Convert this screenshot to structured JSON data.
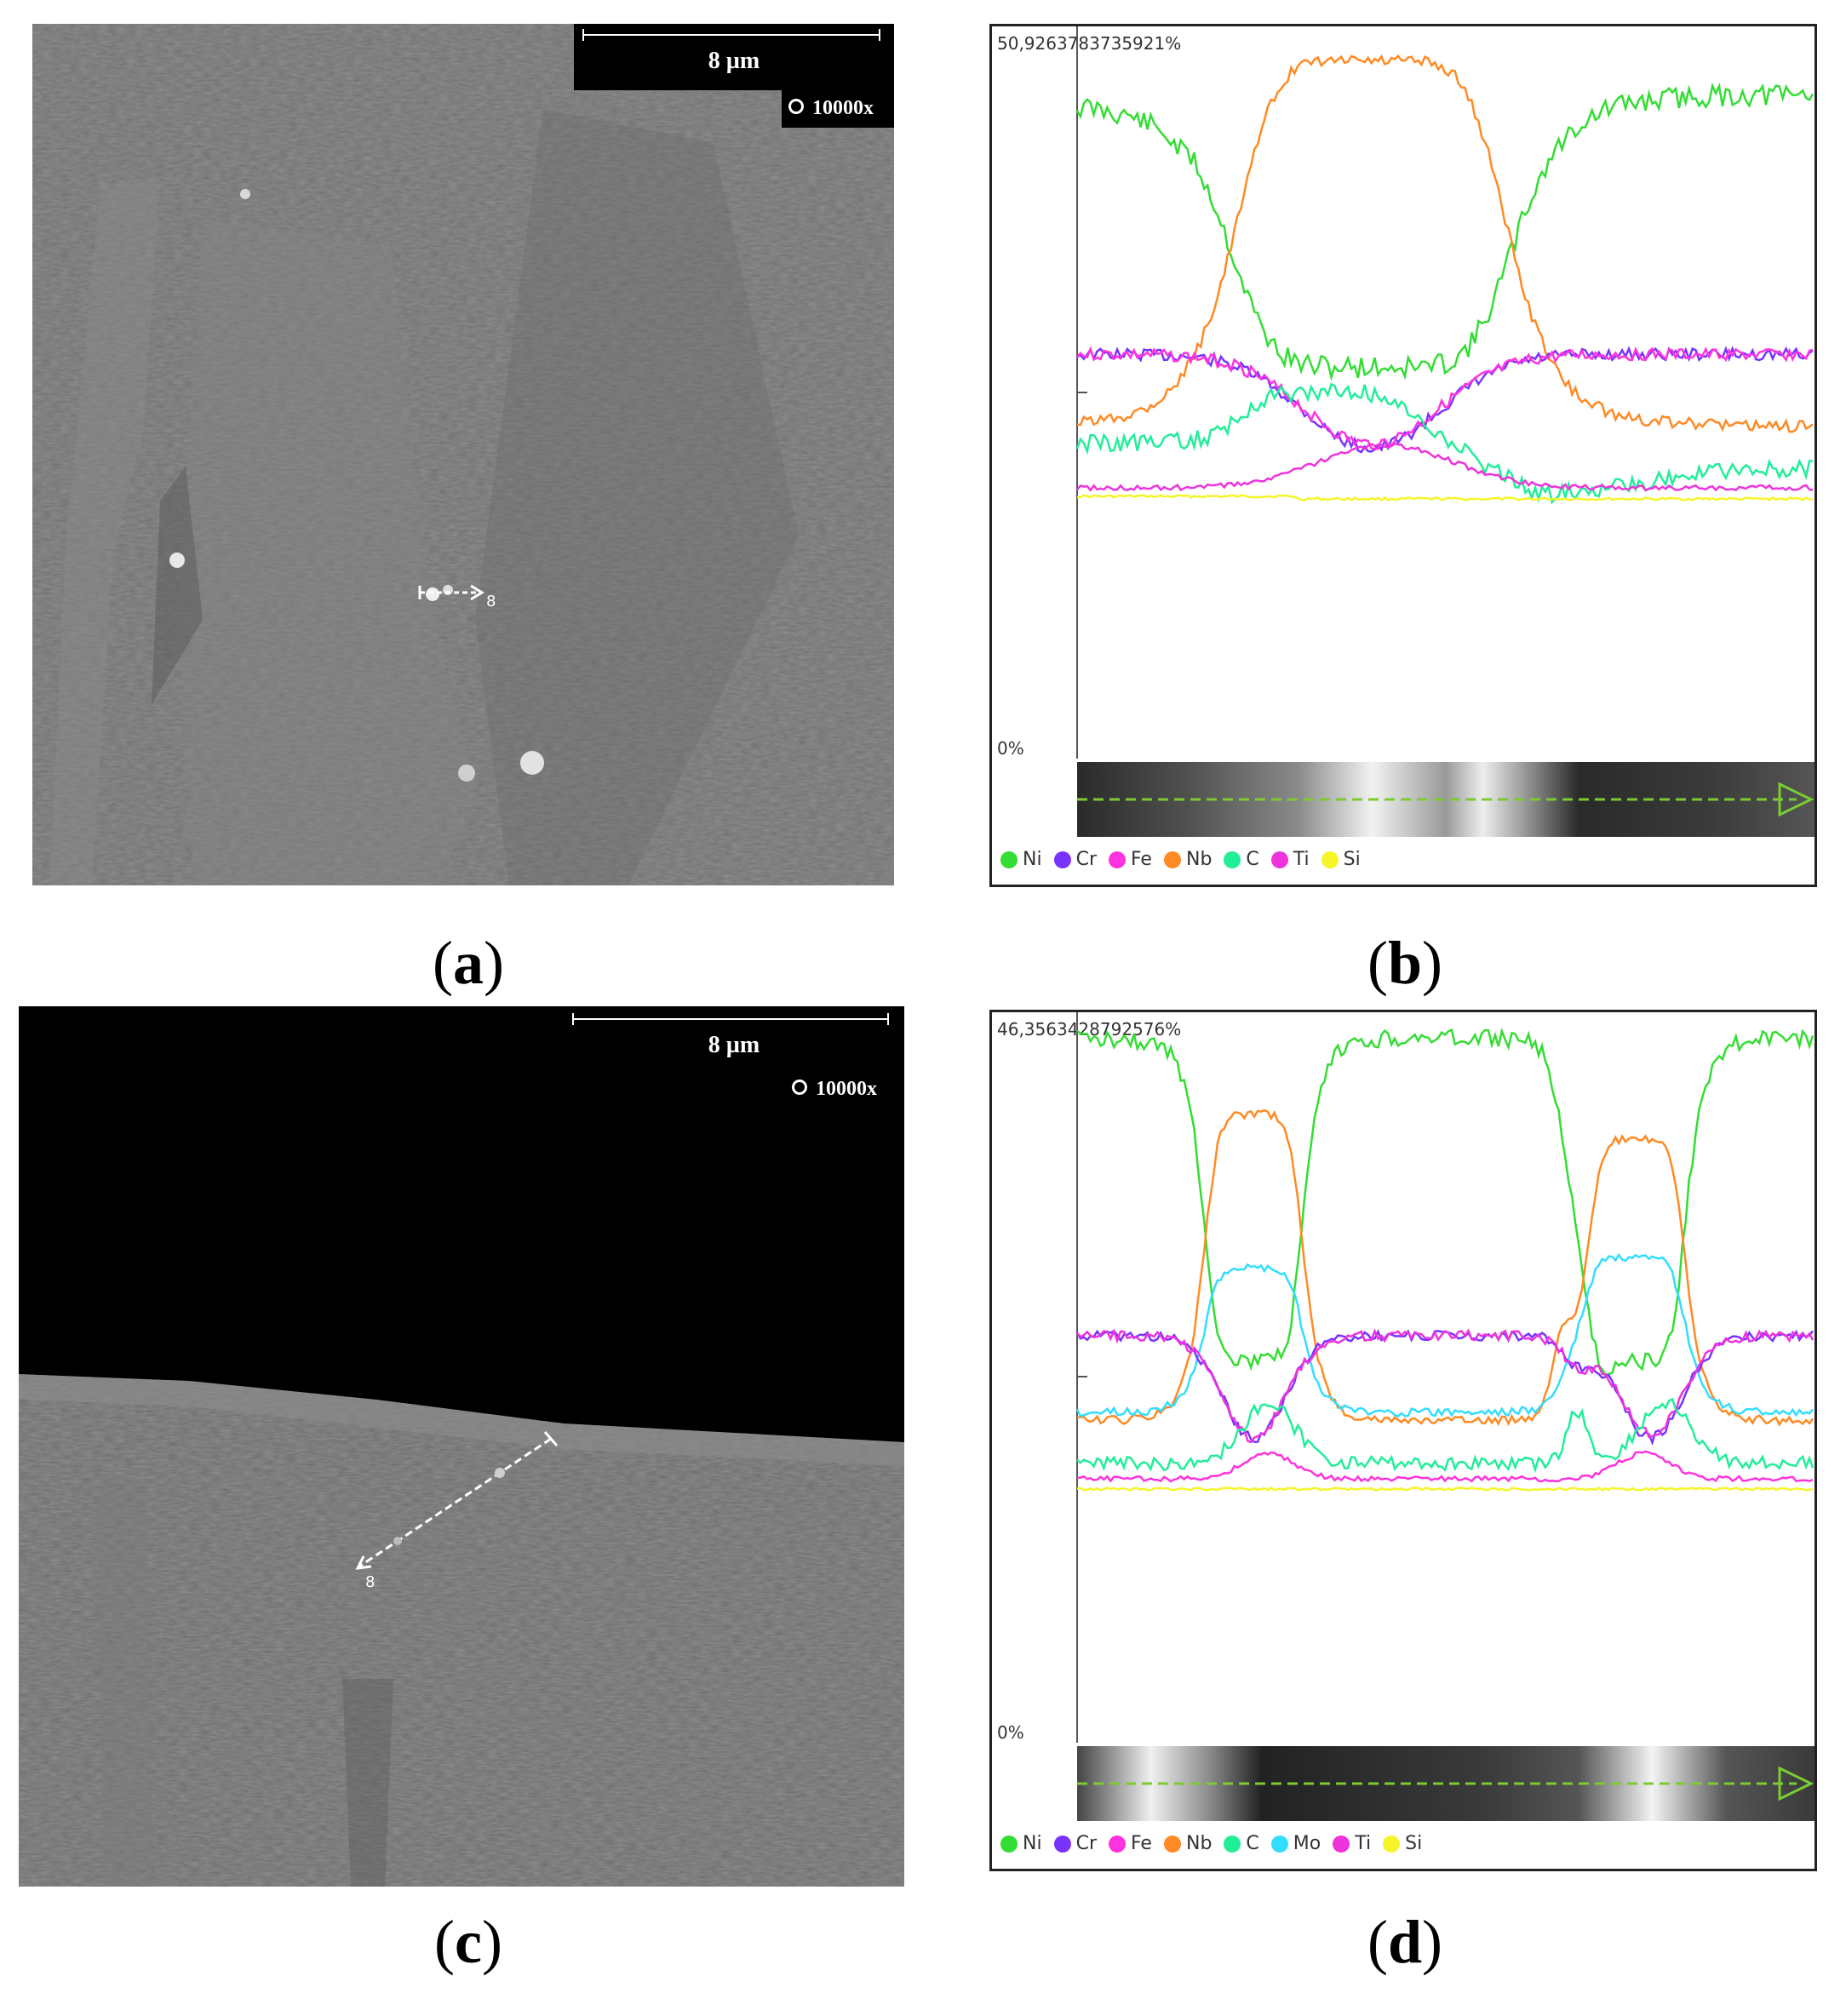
{
  "colors": {
    "Ni": "#33dd33",
    "Cr": "#7a33ff",
    "Fe": "#ff33dd",
    "Nb": "#ff8a24",
    "C": "#22ee99",
    "Mo": "#33ddff",
    "Ti": "#ee33dd",
    "Si": "#f5f52a"
  },
  "panels": {
    "a": {
      "label_open": "(",
      "label_letter": "a",
      "label_close": ")",
      "scale": "8 µm",
      "mag": "10000x",
      "marker": "8"
    },
    "b": {
      "label_open": "(",
      "label_letter": "b",
      "label_close": ")",
      "max_label": "50,9263783735921%",
      "zero_label": "0%",
      "legend": [
        "Ni",
        "Cr",
        "Fe",
        "Nb",
        "C",
        "Ti",
        "Si"
      ]
    },
    "c": {
      "label_open": "(",
      "label_letter": "c",
      "label_close": ")",
      "scale": "8 µm",
      "mag": "10000x",
      "marker": "8"
    },
    "d": {
      "label_open": "(",
      "label_letter": "d",
      "label_close": ")",
      "max_label": "46,3563428792576%",
      "zero_label": "0%",
      "legend": [
        "Ni",
        "Cr",
        "Fe",
        "Nb",
        "C",
        "Mo",
        "Ti",
        "Si"
      ]
    }
  }
}
